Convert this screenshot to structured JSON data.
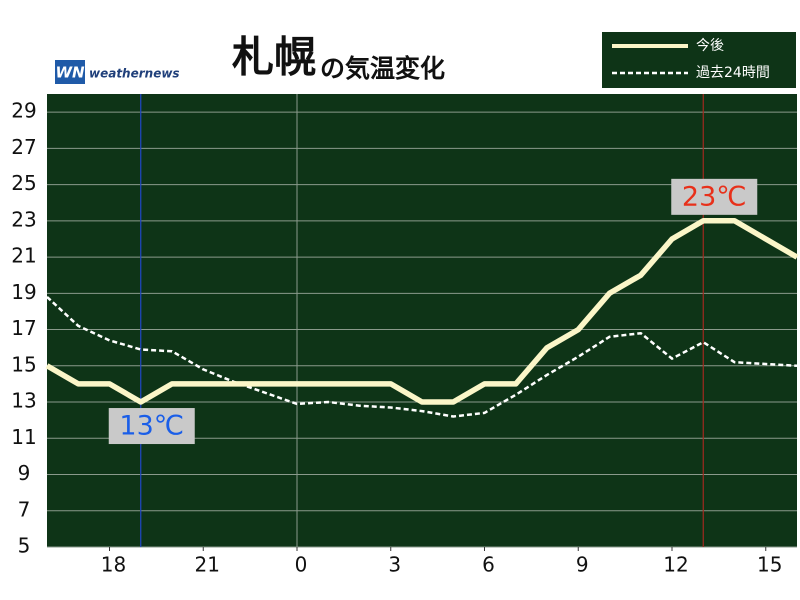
{
  "chart_data": {
    "type": "line",
    "title": "札幌",
    "subtitle": "の気温変化",
    "logo": {
      "mark": "WN",
      "text": "weathernews"
    },
    "x": [
      16,
      17,
      18,
      19,
      20,
      21,
      22,
      23,
      24,
      25,
      26,
      27,
      28,
      29,
      30,
      31,
      32,
      33,
      34,
      35,
      36,
      37,
      38,
      39,
      40
    ],
    "xlim": [
      16,
      40
    ],
    "xticks": [
      18,
      21,
      {
        "value": 24,
        "label": "0"
      },
      {
        "value": 27,
        "label": "3"
      },
      {
        "value": 30,
        "label": "6"
      },
      {
        "value": 33,
        "label": "9"
      },
      {
        "value": 36,
        "label": "12"
      },
      {
        "value": 39,
        "label": "15"
      }
    ],
    "day_boundary": 24,
    "ylim": [
      5,
      30
    ],
    "yticks": [
      5,
      7,
      9,
      11,
      13,
      15,
      17,
      19,
      21,
      23,
      25,
      27,
      29
    ],
    "grid": true,
    "legend": "top-right",
    "series": [
      {
        "name": "今後",
        "color": "#fbf6c8",
        "dash": false,
        "values": [
          15,
          14,
          14,
          13,
          14,
          14,
          14,
          14,
          14,
          14,
          14,
          14,
          13,
          13,
          14,
          14,
          16,
          17,
          19,
          20,
          22,
          23,
          23,
          22,
          21
        ]
      },
      {
        "name": "過去24時間",
        "color": "#ffffff",
        "dash": true,
        "values": [
          18.8,
          17.2,
          16.4,
          15.9,
          15.8,
          14.8,
          14.1,
          13.5,
          12.9,
          13.0,
          12.8,
          12.7,
          12.5,
          12.2,
          12.4,
          13.4,
          14.5,
          15.5,
          16.6,
          16.8,
          15.4,
          16.3,
          15.2,
          15.1,
          15.0
        ]
      }
    ],
    "annotations": [
      {
        "x": 19,
        "value": 13,
        "label": "13℃",
        "color": "#1a5ee8",
        "line_color": "#2047c8",
        "position": "below"
      },
      {
        "x": 37,
        "value": 23,
        "label": "23℃",
        "color": "#e8301a",
        "line_color": "#a02a20",
        "position": "above"
      }
    ]
  }
}
